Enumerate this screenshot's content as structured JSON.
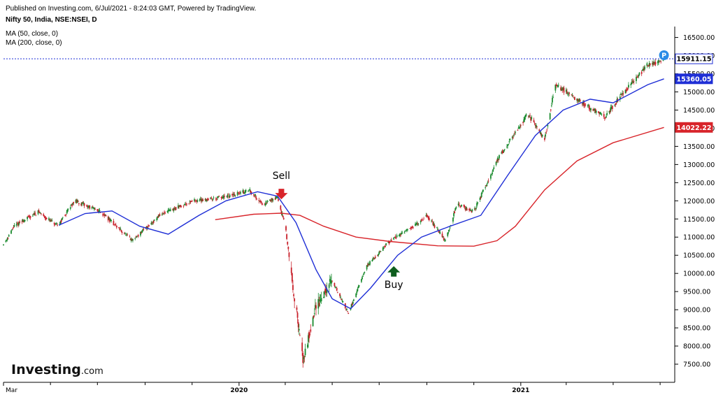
{
  "header": {
    "published": "Published on Investing.com, 6/Jul/2021 - 8:24:03 GMT, Powered by TradingView.",
    "symbol": "Nifty 50, India, NSE:NSEI, D",
    "ma50_label": "MA (50, close, 0)",
    "ma200_label": "MA (200, close, 0)"
  },
  "logo": {
    "main": "Investing",
    "suffix": ".com"
  },
  "colors": {
    "ma50": "#1f2fd6",
    "ma200": "#d8242a",
    "candle_up": "#1a8a2e",
    "candle_down": "#c8202a",
    "sell_arrow": "#d8242a",
    "buy_arrow": "#0e5e1e",
    "price_badge": "#1f2fd6"
  },
  "chart_data": {
    "type": "candlestick",
    "xlabel": "",
    "ylabel": "",
    "ylim": [
      7000,
      16800
    ],
    "x_range": [
      "2019-03-01",
      "2021-07-20"
    ],
    "y_ticks": [
      16500,
      16000,
      15500,
      15000,
      14500,
      14000,
      13500,
      13000,
      12500,
      12000,
      11500,
      11000,
      10500,
      10000,
      9500,
      9000,
      8500,
      8000,
      7500
    ],
    "y_tick_labels": [
      "16500.00",
      "16000.00",
      "15500.00",
      "15000.00",
      "14500.00",
      "14000.00",
      "13500.00",
      "13000.00",
      "12500.00",
      "12000.00",
      "11500.00",
      "11000.00",
      "10500.00",
      "10000.00",
      "9500.00",
      "9000.00",
      "8500.00",
      "8000.00",
      "7500.00"
    ],
    "x_tick_labels": [
      {
        "date": "2019-03-01",
        "label": "Mar"
      },
      {
        "date": "2020-01-01",
        "label": "2020"
      },
      {
        "date": "2021-01-01",
        "label": "2021"
      }
    ],
    "x_minor_ticks": [
      "2019-05-01",
      "2019-07-01",
      "2019-09-01",
      "2019-11-01",
      "2020-03-01",
      "2020-05-01",
      "2020-07-01",
      "2020-09-01",
      "2020-11-01",
      "2021-03-01",
      "2021-05-01",
      "2021-07-01"
    ],
    "price_anchors": [
      [
        "2019-03-01",
        10800
      ],
      [
        "2019-03-15",
        11300
      ],
      [
        "2019-04-15",
        11700
      ],
      [
        "2019-05-10",
        11300
      ],
      [
        "2019-06-01",
        12000
      ],
      [
        "2019-07-05",
        11700
      ],
      [
        "2019-08-15",
        10900
      ],
      [
        "2019-09-20",
        11600
      ],
      [
        "2019-11-01",
        12000
      ],
      [
        "2019-12-15",
        12100
      ],
      [
        "2020-01-15",
        12300
      ],
      [
        "2020-02-01",
        11900
      ],
      [
        "2020-02-20",
        12100
      ],
      [
        "2020-03-01",
        11300
      ],
      [
        "2020-03-12",
        9500
      ],
      [
        "2020-03-24",
        7600
      ],
      [
        "2020-04-10",
        9100
      ],
      [
        "2020-05-01",
        9800
      ],
      [
        "2020-05-22",
        8900
      ],
      [
        "2020-06-15",
        10200
      ],
      [
        "2020-07-15",
        10900
      ],
      [
        "2020-08-15",
        11300
      ],
      [
        "2020-09-01",
        11600
      ],
      [
        "2020-09-25",
        10900
      ],
      [
        "2020-10-10",
        11900
      ],
      [
        "2020-11-01",
        11700
      ],
      [
        "2020-12-01",
        13100
      ],
      [
        "2021-01-10",
        14400
      ],
      [
        "2021-02-01",
        13700
      ],
      [
        "2021-02-15",
        15200
      ],
      [
        "2021-03-15",
        14800
      ],
      [
        "2021-04-20",
        14300
      ],
      [
        "2021-05-15",
        15000
      ],
      [
        "2021-06-15",
        15750
      ],
      [
        "2021-07-06",
        15900
      ]
    ],
    "series": [
      {
        "name": "MA (50, close, 0)",
        "points": [
          [
            "2019-05-12",
            11330
          ],
          [
            "2019-06-15",
            11650
          ],
          [
            "2019-07-20",
            11720
          ],
          [
            "2019-08-25",
            11300
          ],
          [
            "2019-10-01",
            11080
          ],
          [
            "2019-11-10",
            11600
          ],
          [
            "2019-12-15",
            12000
          ],
          [
            "2020-01-25",
            12250
          ],
          [
            "2020-02-20",
            12130
          ],
          [
            "2020-03-15",
            11400
          ],
          [
            "2020-04-10",
            10100
          ],
          [
            "2020-05-01",
            9300
          ],
          [
            "2020-05-25",
            9030
          ],
          [
            "2020-06-20",
            9600
          ],
          [
            "2020-07-25",
            10500
          ],
          [
            "2020-08-25",
            11000
          ],
          [
            "2020-10-01",
            11300
          ],
          [
            "2020-11-10",
            11600
          ],
          [
            "2020-12-15",
            12700
          ],
          [
            "2021-01-20",
            13800
          ],
          [
            "2021-02-25",
            14500
          ],
          [
            "2021-04-01",
            14800
          ],
          [
            "2021-05-01",
            14700
          ],
          [
            "2021-06-15",
            15200
          ],
          [
            "2021-07-06",
            15360
          ]
        ]
      },
      {
        "name": "MA (200, close, 0)",
        "points": [
          [
            "2019-12-01",
            11480
          ],
          [
            "2020-01-20",
            11630
          ],
          [
            "2020-02-25",
            11660
          ],
          [
            "2020-03-20",
            11600
          ],
          [
            "2020-04-20",
            11300
          ],
          [
            "2020-06-01",
            11000
          ],
          [
            "2020-07-15",
            10880
          ],
          [
            "2020-09-15",
            10760
          ],
          [
            "2020-11-01",
            10750
          ],
          [
            "2020-12-01",
            10900
          ],
          [
            "2020-12-25",
            11300
          ],
          [
            "2021-02-01",
            12300
          ],
          [
            "2021-03-15",
            13100
          ],
          [
            "2021-05-01",
            13600
          ],
          [
            "2021-07-06",
            14022
          ]
        ]
      }
    ],
    "price_labels": [
      {
        "value": 15911.15,
        "label": "15911.15",
        "style": "outline"
      },
      {
        "value": 15360.05,
        "label": "15360.05",
        "series": "MA (50, close, 0)"
      },
      {
        "value": 14022.22,
        "label": "14022.22",
        "series": "MA (200, close, 0)"
      }
    ],
    "annotations": [
      {
        "text": "Sell",
        "date": "2020-02-25",
        "value": 12330,
        "arrow": "down"
      },
      {
        "text": "Buy",
        "date": "2020-07-20",
        "value": 10200,
        "arrow": "up"
      }
    ],
    "marker": {
      "text": "P",
      "date": "2021-07-06"
    }
  }
}
